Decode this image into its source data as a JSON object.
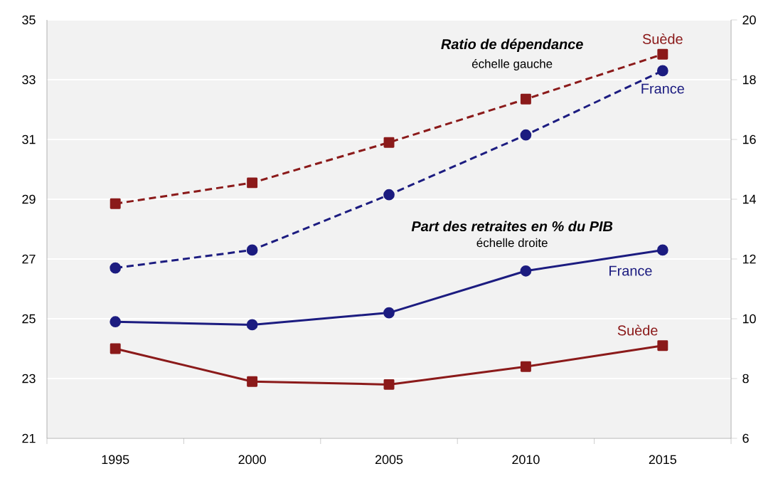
{
  "chart_data": {
    "type": "line",
    "categories": [
      "1995",
      "2000",
      "2005",
      "2010",
      "2015"
    ],
    "series": [
      {
        "name": "Suède",
        "color": "#8b1a1a",
        "values": [
          28.85,
          29.55,
          30.9,
          32.35,
          33.85
        ],
        "marker": "square",
        "line_style": "dashed"
      },
      {
        "name": "France",
        "color": "#1c1c80",
        "values": [
          26.7,
          27.3,
          29.15,
          31.15,
          33.3
        ],
        "marker": "circle",
        "line_style": "dashed"
      },
      {
        "name": "France",
        "color": "#1c1c80",
        "values": [
          9.9,
          9.8,
          10.2,
          11.6,
          12.3
        ],
        "marker": "circle",
        "line_style": "solid",
        "axis": "y2"
      },
      {
        "name": "Suède",
        "color": "#8b1a1a",
        "values": [
          9.0,
          7.9,
          7.8,
          8.4,
          9.1
        ],
        "marker": "square",
        "line_style": "solid",
        "axis": "y2"
      }
    ],
    "ylim": [
      21,
      35
    ],
    "yticks": [
      21,
      23,
      25,
      27,
      29,
      31,
      33,
      35
    ],
    "y2lim": [
      6,
      20
    ],
    "y2ticks": [
      6,
      8,
      10,
      12,
      14,
      16,
      18,
      20
    ],
    "grid": "y",
    "annotations": [
      "Ratio de dépendance",
      "échelle gauche",
      "Part des retraites en % du PIB",
      "échelle droite"
    ]
  }
}
